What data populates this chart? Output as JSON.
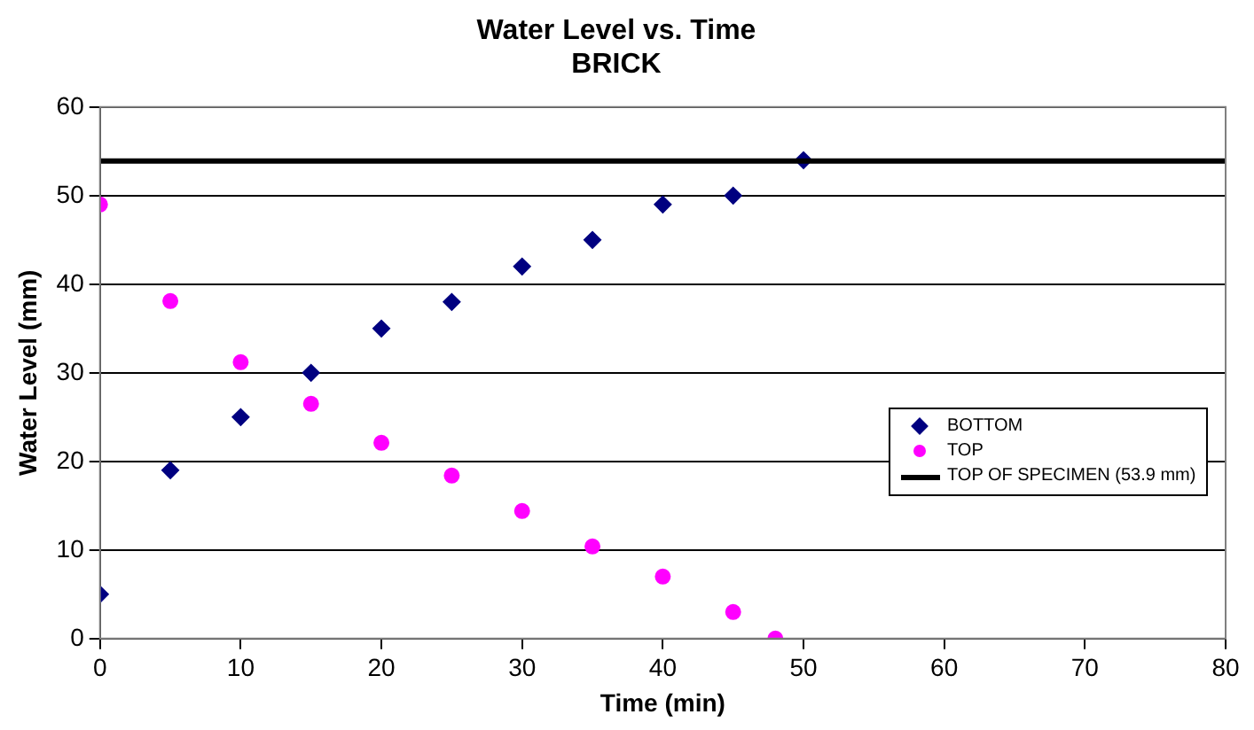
{
  "chart_data": {
    "type": "scatter",
    "title": "Water Level vs. Time",
    "subtitle": "BRICK",
    "xlabel": "Time (min)",
    "ylabel": "Water Level (mm)",
    "xlim": [
      0,
      80
    ],
    "xticks": [
      0,
      10,
      20,
      30,
      40,
      50,
      60,
      70,
      80
    ],
    "ylim": [
      0,
      60
    ],
    "yticks": [
      0,
      10,
      20,
      30,
      40,
      50,
      60
    ],
    "grid": "y",
    "legend": "right",
    "series": [
      {
        "name": "BOTTOM",
        "color": "#000080",
        "marker": "diamond",
        "x": [
          0,
          5,
          10,
          15,
          20,
          25,
          30,
          35,
          40,
          45,
          50
        ],
        "values": [
          5,
          19,
          25,
          30,
          35,
          38,
          42,
          45,
          49,
          50,
          54
        ]
      },
      {
        "name": "TOP",
        "color": "#ff00ff",
        "marker": "circle",
        "x": [
          0,
          5,
          10,
          15,
          20,
          25,
          30,
          35,
          40,
          45,
          48
        ],
        "values": [
          49,
          38.1,
          31.2,
          26.5,
          22.1,
          18.4,
          14.4,
          10.4,
          7,
          3,
          0
        ]
      }
    ],
    "ref_lines": [
      {
        "axis": "y",
        "value": 53.9,
        "label": "TOP OF SPECIMEN (53.9 mm)",
        "color": "#000000",
        "line_style": "solid"
      }
    ]
  }
}
